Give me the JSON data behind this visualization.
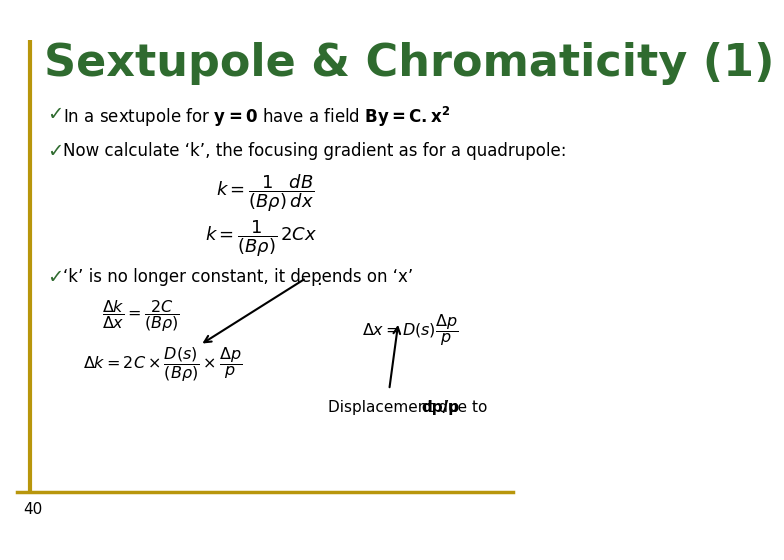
{
  "title": "Sextupole & Chromaticity (1)",
  "title_color": "#2F6B2F",
  "title_fontsize": 32,
  "bg_color": "#FFFFFF",
  "border_color": "#B8960C",
  "slide_number": "40",
  "bullet_color": "#2F6B2F",
  "text_color": "#000000",
  "bullet1": "In a sextupole for $\\mathbf{y = 0}$ have a field $\\mathbf{By = C.x^2}$",
  "bullet2": "Now calculate ‘k’, the focusing gradient as for a quadrupole:",
  "bullet3": "‘k’ is no longer constant, it depends on ‘x’",
  "annotation_normal": "Displacement due to ",
  "annotation_bold": "dp/p",
  "eq1": "$k = \\dfrac{1}{(B\\rho)} \\dfrac{dB}{dx}$",
  "eq2": "$k = \\dfrac{1}{(B\\rho)}\\, 2Cx$",
  "eq3": "$\\dfrac{\\Delta k}{\\Delta x} = \\dfrac{2C}{(B\\rho)}$",
  "eq4": "$\\Delta k = 2C \\times \\dfrac{D(s)}{(B\\rho)} \\times \\dfrac{\\Delta p}{p}$",
  "eq5": "$\\Delta x = D(s)\\dfrac{\\Delta p}{p}$"
}
